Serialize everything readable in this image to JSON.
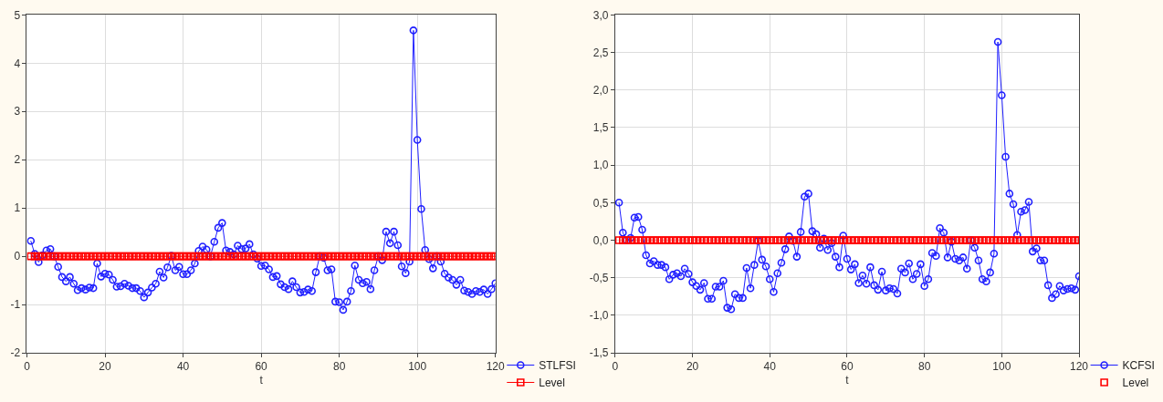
{
  "chart_data": [
    {
      "type": "line",
      "xlabel": "t",
      "xlim": [
        0,
        120
      ],
      "xticks": [
        0,
        20,
        40,
        60,
        80,
        100,
        120
      ],
      "ylim": [
        -2,
        5
      ],
      "yticks": [
        -2,
        -1,
        0,
        1,
        2,
        3,
        4,
        5
      ],
      "grid": true,
      "legend": "bottom right",
      "x": [
        1,
        2,
        3,
        4,
        5,
        6,
        7,
        8,
        9,
        10,
        11,
        12,
        13,
        14,
        15,
        16,
        17,
        18,
        19,
        20,
        21,
        22,
        23,
        24,
        25,
        26,
        27,
        28,
        29,
        30,
        31,
        32,
        33,
        34,
        35,
        36,
        37,
        38,
        39,
        40,
        41,
        42,
        43,
        44,
        45,
        46,
        47,
        48,
        49,
        50,
        51,
        52,
        53,
        54,
        55,
        56,
        57,
        58,
        59,
        60,
        61,
        62,
        63,
        64,
        65,
        66,
        67,
        68,
        69,
        70,
        71,
        72,
        73,
        74,
        75,
        76,
        77,
        78,
        79,
        80,
        81,
        82,
        83,
        84,
        85,
        86,
        87,
        88,
        89,
        90,
        91,
        92,
        93,
        94,
        95,
        96,
        97,
        98,
        99,
        100,
        101,
        102,
        103,
        104,
        105,
        106,
        107,
        108,
        109,
        110,
        111,
        112,
        113,
        114,
        115,
        116,
        117,
        118,
        119,
        120
      ],
      "series": [
        {
          "name": "STLFSI",
          "color": "#1f1fff",
          "marker": "circle",
          "line_style": "solid",
          "values": [
            0.32,
            0.05,
            -0.12,
            0.02,
            0.12,
            0.15,
            0.0,
            -0.22,
            -0.43,
            -0.52,
            -0.43,
            -0.57,
            -0.7,
            -0.66,
            -0.69,
            -0.65,
            -0.66,
            -0.15,
            -0.42,
            -0.36,
            -0.38,
            -0.49,
            -0.63,
            -0.62,
            -0.57,
            -0.61,
            -0.66,
            -0.66,
            -0.72,
            -0.85,
            -0.75,
            -0.65,
            -0.57,
            -0.32,
            -0.44,
            -0.23,
            0.01,
            -0.29,
            -0.22,
            -0.37,
            -0.37,
            -0.29,
            -0.15,
            0.11,
            0.2,
            0.14,
            0.0,
            0.3,
            0.59,
            0.69,
            0.12,
            0.09,
            0.04,
            0.22,
            0.15,
            0.16,
            0.25,
            0.04,
            -0.05,
            -0.2,
            -0.19,
            -0.27,
            -0.43,
            -0.41,
            -0.58,
            -0.64,
            -0.68,
            -0.52,
            -0.64,
            -0.75,
            -0.74,
            -0.69,
            -0.72,
            -0.33,
            0.0,
            -0.03,
            -0.29,
            -0.27,
            -0.94,
            -0.95,
            -1.11,
            -0.94,
            -0.72,
            -0.19,
            -0.49,
            -0.56,
            -0.53,
            -0.68,
            -0.29,
            0.0,
            -0.08,
            0.51,
            0.27,
            0.51,
            0.23,
            -0.21,
            -0.35,
            -0.11,
            4.68,
            2.41,
            0.98,
            0.13,
            -0.06,
            -0.25,
            0.0,
            -0.11,
            -0.36,
            -0.44,
            -0.49,
            -0.59,
            -0.49,
            -0.71,
            -0.74,
            -0.78,
            -0.72,
            -0.74,
            -0.69,
            -0.78,
            -0.68,
            -0.56
          ]
        },
        {
          "name": "Level",
          "color": "#ff0000",
          "marker": "square",
          "line_style": "solid",
          "values": [
            0,
            0,
            0,
            0,
            0,
            0,
            0,
            0,
            0,
            0,
            0,
            0,
            0,
            0,
            0,
            0,
            0,
            0,
            0,
            0,
            0,
            0,
            0,
            0,
            0,
            0,
            0,
            0,
            0,
            0,
            0,
            0,
            0,
            0,
            0,
            0,
            0,
            0,
            0,
            0,
            0,
            0,
            0,
            0,
            0,
            0,
            0,
            0,
            0,
            0,
            0,
            0,
            0,
            0,
            0,
            0,
            0,
            0,
            0,
            0,
            0,
            0,
            0,
            0,
            0,
            0,
            0,
            0,
            0,
            0,
            0,
            0,
            0,
            0,
            0,
            0,
            0,
            0,
            0,
            0,
            0,
            0,
            0,
            0,
            0,
            0,
            0,
            0,
            0,
            0,
            0,
            0,
            0,
            0,
            0,
            0,
            0,
            0,
            0,
            0,
            0,
            0,
            0,
            0,
            0,
            0,
            0,
            0,
            0,
            0,
            0,
            0,
            0,
            0,
            0,
            0,
            0,
            0,
            0,
            0
          ]
        }
      ]
    },
    {
      "type": "line",
      "xlabel": "t",
      "xlim": [
        0,
        120
      ],
      "xticks": [
        0,
        20,
        40,
        60,
        80,
        100,
        120
      ],
      "ylim": [
        -1.5,
        3.0
      ],
      "yticks": [
        {
          "value": -1.5,
          "label": "-1,5"
        },
        {
          "value": -1.0,
          "label": "-1,0"
        },
        {
          "value": -0.5,
          "label": "-0,5"
        },
        {
          "value": 0.0,
          "label": "0,0"
        },
        {
          "value": 0.5,
          "label": "0,5"
        },
        {
          "value": 1.0,
          "label": "1,0"
        },
        {
          "value": 1.5,
          "label": "1,5"
        },
        {
          "value": 2.0,
          "label": "2,0"
        },
        {
          "value": 2.5,
          "label": "2,5"
        },
        {
          "value": 3.0,
          "label": "3,0"
        }
      ],
      "grid": true,
      "legend": "bottom right",
      "x": [
        1,
        2,
        3,
        4,
        5,
        6,
        7,
        8,
        9,
        10,
        11,
        12,
        13,
        14,
        15,
        16,
        17,
        18,
        19,
        20,
        21,
        22,
        23,
        24,
        25,
        26,
        27,
        28,
        29,
        30,
        31,
        32,
        33,
        34,
        35,
        36,
        37,
        38,
        39,
        40,
        41,
        42,
        43,
        44,
        45,
        46,
        47,
        48,
        49,
        50,
        51,
        52,
        53,
        54,
        55,
        56,
        57,
        58,
        59,
        60,
        61,
        62,
        63,
        64,
        65,
        66,
        67,
        68,
        69,
        70,
        71,
        72,
        73,
        74,
        75,
        76,
        77,
        78,
        79,
        80,
        81,
        82,
        83,
        84,
        85,
        86,
        87,
        88,
        89,
        90,
        91,
        92,
        93,
        94,
        95,
        96,
        97,
        98,
        99,
        100,
        101,
        102,
        103,
        104,
        105,
        106,
        107,
        108,
        109,
        110,
        111,
        112,
        113,
        114,
        115,
        116,
        117,
        118,
        119,
        120
      ],
      "series": [
        {
          "name": "KCFSI",
          "color": "#1f1fff",
          "marker": "circle",
          "line_style": "solid",
          "values": [
            0.5,
            0.1,
            0.0,
            0.03,
            0.3,
            0.31,
            0.14,
            -0.2,
            -0.31,
            -0.28,
            -0.33,
            -0.33,
            -0.36,
            -0.52,
            -0.46,
            -0.44,
            -0.48,
            -0.38,
            -0.45,
            -0.56,
            -0.61,
            -0.66,
            -0.57,
            -0.78,
            -0.78,
            -0.62,
            -0.62,
            -0.54,
            -0.9,
            -0.92,
            -0.72,
            -0.77,
            -0.77,
            -0.37,
            -0.64,
            -0.33,
            -0.01,
            -0.26,
            -0.35,
            -0.52,
            -0.69,
            -0.44,
            -0.3,
            -0.12,
            0.05,
            -0.01,
            -0.22,
            0.11,
            0.58,
            0.62,
            0.12,
            0.08,
            -0.1,
            0.02,
            -0.13,
            -0.04,
            -0.22,
            -0.36,
            0.06,
            -0.25,
            -0.39,
            -0.32,
            -0.57,
            -0.47,
            -0.58,
            -0.36,
            -0.6,
            -0.66,
            -0.42,
            -0.67,
            -0.64,
            -0.65,
            -0.71,
            -0.38,
            -0.43,
            -0.31,
            -0.52,
            -0.45,
            -0.32,
            -0.61,
            -0.52,
            -0.17,
            -0.21,
            0.16,
            0.1,
            -0.23,
            -0.02,
            -0.25,
            -0.27,
            -0.23,
            -0.38,
            0.0,
            -0.1,
            -0.27,
            -0.52,
            -0.55,
            -0.43,
            -0.18,
            2.64,
            1.93,
            1.11,
            0.62,
            0.48,
            0.07,
            0.38,
            0.4,
            0.51,
            -0.15,
            -0.11,
            -0.27,
            -0.27,
            -0.6,
            -0.77,
            -0.72,
            -0.61,
            -0.67,
            -0.65,
            -0.64,
            -0.66,
            -0.48
          ]
        },
        {
          "name": "Level",
          "type": "scatter",
          "color": "#ff0000",
          "marker": "square",
          "values": [
            0,
            0,
            0,
            0,
            0,
            0,
            0,
            0,
            0,
            0,
            0,
            0,
            0,
            0,
            0,
            0,
            0,
            0,
            0,
            0,
            0,
            0,
            0,
            0,
            0,
            0,
            0,
            0,
            0,
            0,
            0,
            0,
            0,
            0,
            0,
            0,
            0,
            0,
            0,
            0,
            0,
            0,
            0,
            0,
            0,
            0,
            0,
            0,
            0,
            0,
            0,
            0,
            0,
            0,
            0,
            0,
            0,
            0,
            0,
            0,
            0,
            0,
            0,
            0,
            0,
            0,
            0,
            0,
            0,
            0,
            0,
            0,
            0,
            0,
            0,
            0,
            0,
            0,
            0,
            0,
            0,
            0,
            0,
            0,
            0,
            0,
            0,
            0,
            0,
            0,
            0,
            0,
            0,
            0,
            0,
            0,
            0,
            0,
            0,
            0,
            0,
            0,
            0,
            0,
            0,
            0,
            0,
            0,
            0,
            0,
            0,
            0,
            0,
            0,
            0,
            0,
            0,
            0,
            0,
            0
          ]
        }
      ]
    }
  ]
}
